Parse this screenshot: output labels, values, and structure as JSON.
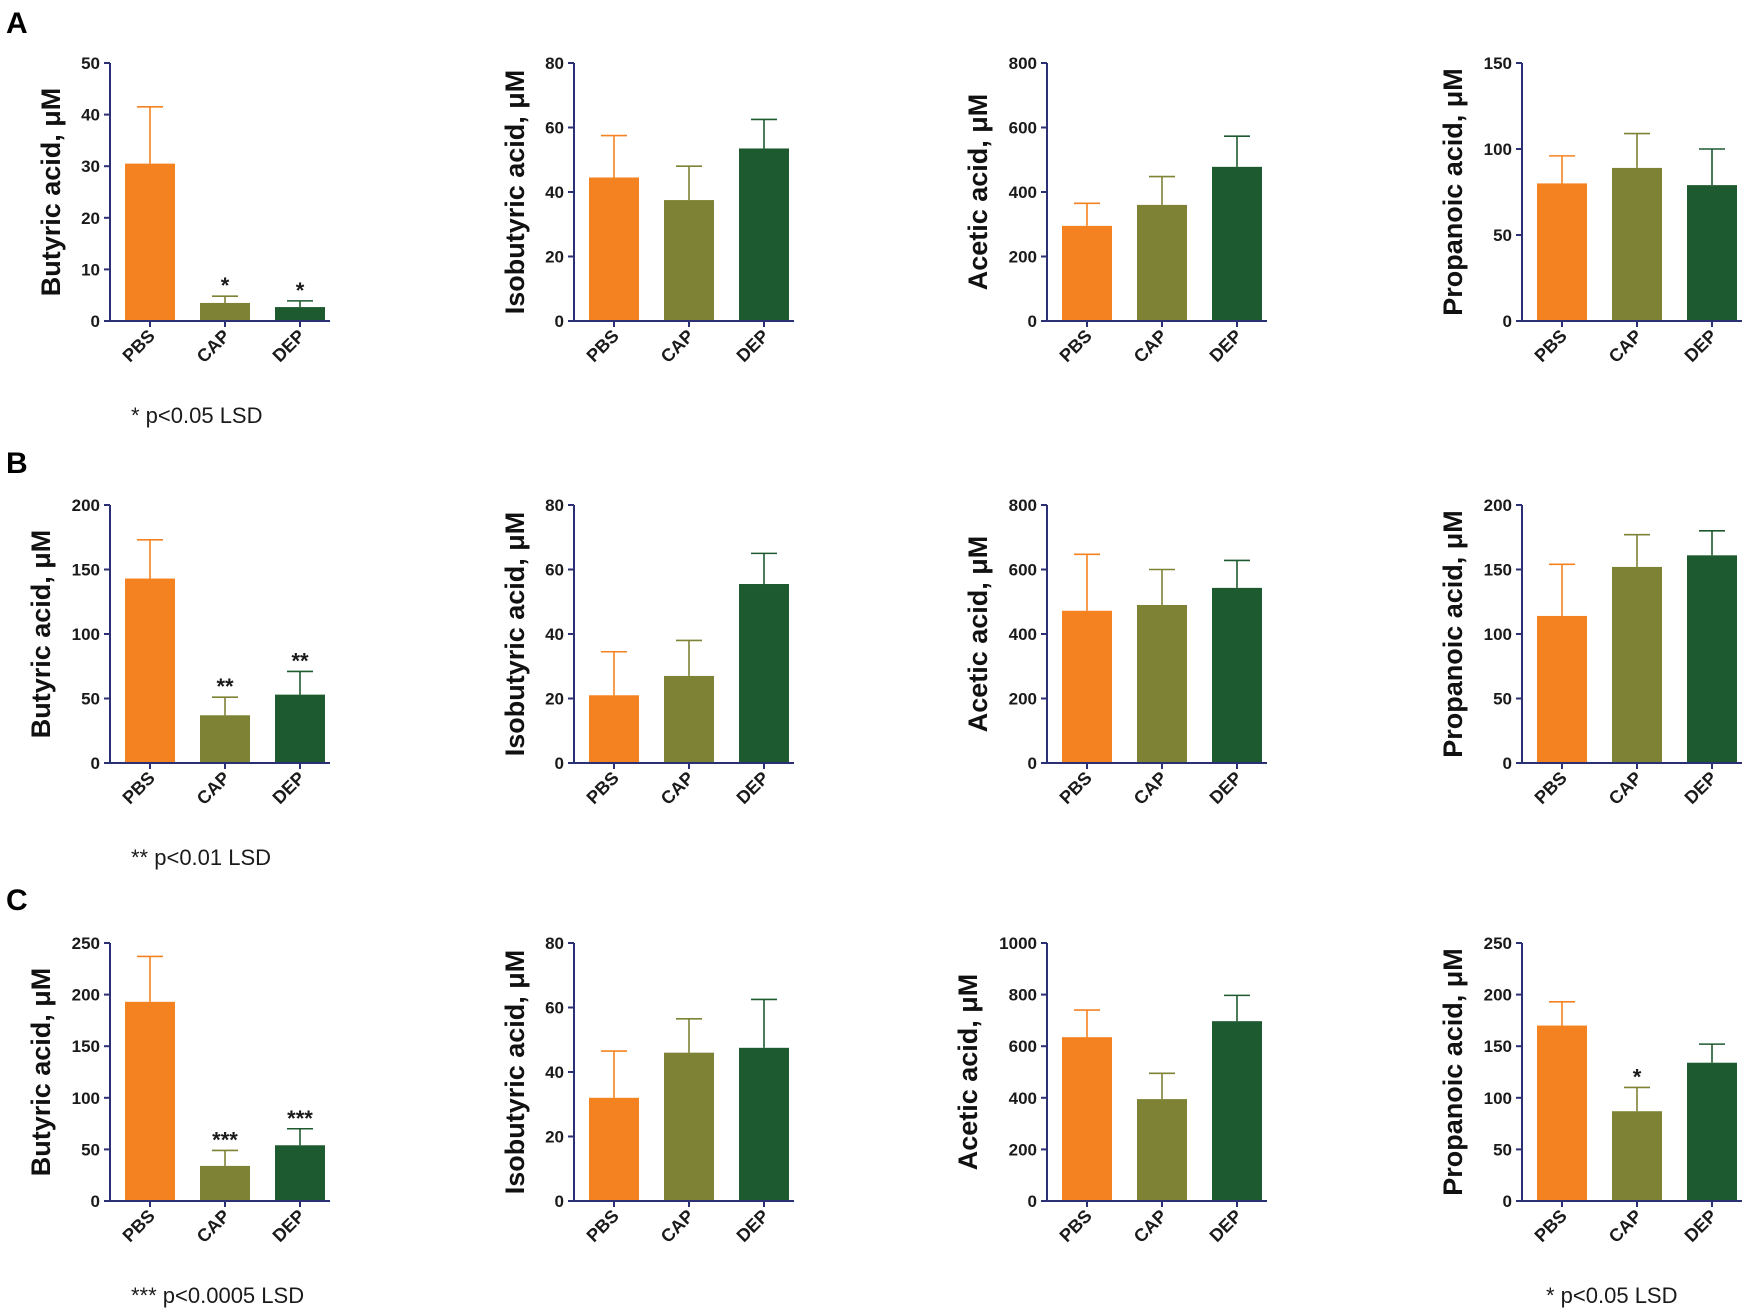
{
  "colors": {
    "PBS": "#f58220",
    "CAP": "#7e8235",
    "DEP": "#1e5a30",
    "axis": "#2b2f74"
  },
  "rows": [
    {
      "label": "A",
      "footnote": "* p<0.05 LSD",
      "footnote_right": "",
      "charts": [
        {
          "ylabel": "Butyric acid, μM",
          "ylim": [
            0,
            50
          ],
          "ticks": [
            0,
            10,
            20,
            30,
            40,
            50
          ],
          "categories": [
            "PBS",
            "CAP",
            "DEP"
          ],
          "values": [
            30.5,
            3.5,
            2.7
          ],
          "errors": [
            11,
            1.3,
            1.2
          ],
          "annotations": [
            "",
            "*",
            "*"
          ]
        },
        {
          "ylabel": "Isobutyric acid, μM",
          "ylim": [
            0,
            80
          ],
          "ticks": [
            0,
            20,
            40,
            60,
            80
          ],
          "categories": [
            "PBS",
            "CAP",
            "DEP"
          ],
          "values": [
            44.5,
            37.5,
            53.5
          ],
          "errors": [
            13,
            10.5,
            9
          ],
          "annotations": [
            "",
            "",
            ""
          ]
        },
        {
          "ylabel": "Acetic acid, μM",
          "ylim": [
            0,
            800
          ],
          "ticks": [
            0,
            200,
            400,
            600,
            800
          ],
          "categories": [
            "PBS",
            "CAP",
            "DEP"
          ],
          "values": [
            295,
            360,
            478
          ],
          "errors": [
            70,
            88,
            95
          ],
          "annotations": [
            "",
            "",
            ""
          ]
        },
        {
          "ylabel": "Propanoic acid, μM",
          "ylim": [
            0,
            150
          ],
          "ticks": [
            0,
            50,
            100,
            150
          ],
          "categories": [
            "PBS",
            "CAP",
            "DEP"
          ],
          "values": [
            80,
            89,
            79
          ],
          "errors": [
            16,
            20,
            21
          ],
          "annotations": [
            "",
            "",
            ""
          ]
        }
      ]
    },
    {
      "label": "B",
      "footnote": "** p<0.01 LSD",
      "footnote_right": "",
      "charts": [
        {
          "ylabel": "Butyric acid, μM",
          "ylim": [
            0,
            200
          ],
          "ticks": [
            0,
            50,
            100,
            150,
            200
          ],
          "categories": [
            "PBS",
            "CAP",
            "DEP"
          ],
          "values": [
            143,
            37,
            53
          ],
          "errors": [
            30,
            14,
            18
          ],
          "annotations": [
            "",
            "**",
            "**"
          ]
        },
        {
          "ylabel": "Isobutyric acid, μM",
          "ylim": [
            0,
            80
          ],
          "ticks": [
            0,
            20,
            40,
            60,
            80
          ],
          "categories": [
            "PBS",
            "CAP",
            "DEP"
          ],
          "values": [
            21,
            27,
            55.5
          ],
          "errors": [
            13.5,
            11,
            9.5
          ],
          "annotations": [
            "",
            "",
            ""
          ]
        },
        {
          "ylabel": "Acetic acid, μM",
          "ylim": [
            0,
            800
          ],
          "ticks": [
            0,
            200,
            400,
            600,
            800
          ],
          "categories": [
            "PBS",
            "CAP",
            "DEP"
          ],
          "values": [
            472,
            490,
            543
          ],
          "errors": [
            175,
            110,
            85
          ],
          "annotations": [
            "",
            "",
            ""
          ]
        },
        {
          "ylabel": "Propanoic acid, μM",
          "ylim": [
            0,
            200
          ],
          "ticks": [
            0,
            50,
            100,
            150,
            200
          ],
          "categories": [
            "PBS",
            "CAP",
            "DEP"
          ],
          "values": [
            114,
            152,
            161
          ],
          "errors": [
            40,
            25,
            19
          ],
          "annotations": [
            "",
            "",
            ""
          ]
        }
      ]
    },
    {
      "label": "C",
      "footnote": "*** p<0.0005 LSD",
      "footnote_right": "* p<0.05 LSD",
      "charts": [
        {
          "ylabel": "Butyric acid, μM",
          "ylim": [
            0,
            250
          ],
          "ticks": [
            0,
            50,
            100,
            150,
            200,
            250
          ],
          "categories": [
            "PBS",
            "CAP",
            "DEP"
          ],
          "values": [
            193,
            34,
            54
          ],
          "errors": [
            44,
            15,
            16
          ],
          "annotations": [
            "",
            "***",
            "***"
          ]
        },
        {
          "ylabel": "Isobutyric acid, μM",
          "ylim": [
            0,
            80
          ],
          "ticks": [
            0,
            20,
            40,
            60,
            80
          ],
          "categories": [
            "PBS",
            "CAP",
            "DEP"
          ],
          "values": [
            32,
            46,
            47.5
          ],
          "errors": [
            14.5,
            10.5,
            15
          ],
          "annotations": [
            "",
            "",
            ""
          ]
        },
        {
          "ylabel": "Acetic acid, μM",
          "ylim": [
            0,
            1000
          ],
          "ticks": [
            0,
            200,
            400,
            600,
            800,
            1000
          ],
          "categories": [
            "PBS",
            "CAP",
            "DEP"
          ],
          "values": [
            635,
            395,
            697
          ],
          "errors": [
            105,
            100,
            100
          ],
          "annotations": [
            "",
            "",
            ""
          ]
        },
        {
          "ylabel": "Propanoic acid, μM",
          "ylim": [
            0,
            250
          ],
          "ticks": [
            0,
            50,
            100,
            150,
            200,
            250
          ],
          "categories": [
            "PBS",
            "CAP",
            "DEP"
          ],
          "values": [
            170,
            87,
            134
          ],
          "errors": [
            23,
            23,
            18
          ],
          "annotations": [
            "",
            "*",
            ""
          ]
        }
      ]
    }
  ]
}
